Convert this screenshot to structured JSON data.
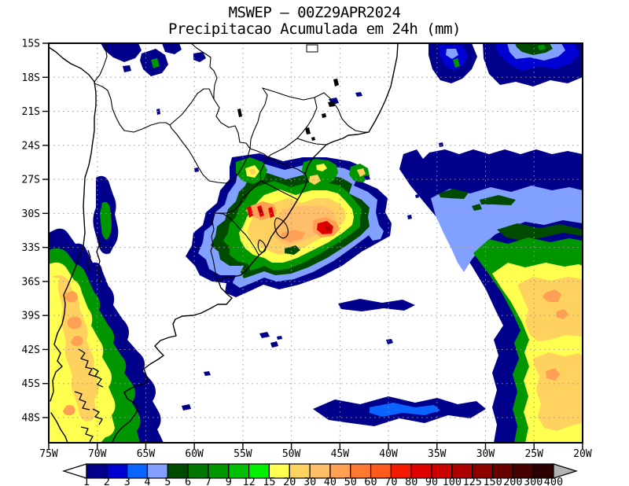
{
  "title": {
    "line1": "MSWEP – 00Z29APR2024",
    "line2": "Precipitacao Acumulada em 24h (mm)"
  },
  "map": {
    "lat_labels": [
      "15S",
      "18S",
      "21S",
      "24S",
      "27S",
      "30S",
      "33S",
      "36S",
      "39S",
      "42S",
      "45S",
      "48S"
    ],
    "lon_labels": [
      "75W",
      "70W",
      "65W",
      "60W",
      "55W",
      "50W",
      "45W",
      "40W",
      "35W",
      "30W",
      "25W",
      "20W"
    ],
    "grid_color": "#9a9a9a",
    "outline_color": "#000000",
    "background": "#ffffff"
  },
  "colorbar": {
    "units": "mm",
    "tick_labels": [
      "1",
      "2",
      "3",
      "4",
      "5",
      "6",
      "7",
      "9",
      "12",
      "15",
      "20",
      "30",
      "40",
      "50",
      "60",
      "70",
      "80",
      "90",
      "100",
      "125",
      "150",
      "200",
      "300",
      "400"
    ],
    "colors": [
      "#00008B",
      "#0000D2",
      "#0A64FF",
      "#82A0FF",
      "#004B00",
      "#007800",
      "#009600",
      "#00BE00",
      "#00F000",
      "#FFFF50",
      "#FFD25F",
      "#FFBE69",
      "#FFA054",
      "#FF7832",
      "#FF5A1E",
      "#F51900",
      "#E10000",
      "#CD0000",
      "#AF0000",
      "#8C0000",
      "#690000",
      "#460000",
      "#2D0000"
    ],
    "underflow_arrow_color": "#ffffff",
    "overflow_arrow_color": "#b3b3b3"
  },
  "features": [
    {
      "name": "southern-brazil-uruguay-storm",
      "approx_center": "30S 52W",
      "peak_mm": "100-150"
    },
    {
      "name": "andes-patagonia-band",
      "approx_center": "42S 72W",
      "peak_mm": "40-60"
    },
    {
      "name": "south-atlantic-system",
      "approx_center": "38S 23W",
      "peak_mm": "40-50"
    },
    {
      "name": "northeast-ocean-cells",
      "approx_center": "16S 23W",
      "peak_mm": "7-12"
    },
    {
      "name": "altiplano-showers",
      "approx_center": "16S 70W",
      "peak_mm": "7-9"
    }
  ]
}
